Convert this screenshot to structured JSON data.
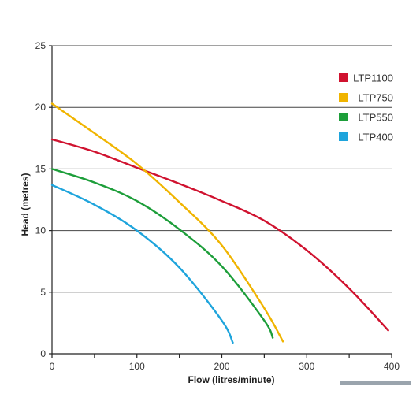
{
  "chart_data": {
    "type": "line",
    "xlabel": "Flow (litres/minute)",
    "ylabel": "Head (metres)",
    "xlim": [
      0,
      400
    ],
    "ylim": [
      0,
      25
    ],
    "xticks": [
      0,
      100,
      200,
      300,
      400
    ],
    "yticks": [
      0,
      5,
      10,
      15,
      20,
      25
    ],
    "grid": "horizontal",
    "legend_position": "top-right",
    "series": [
      {
        "name": "LTP1100",
        "color": "#d0122f",
        "x": [
          0,
          50,
          100,
          150,
          200,
          250,
          300,
          350,
          396
        ],
        "y": [
          17.4,
          16.4,
          15.1,
          13.8,
          12.4,
          10.8,
          8.4,
          5.3,
          1.9
        ]
      },
      {
        "name": "LTP750",
        "color": "#f0b400",
        "x": [
          0,
          50,
          100,
          150,
          200,
          250,
          272
        ],
        "y": [
          20.3,
          17.9,
          15.4,
          12.3,
          8.8,
          3.7,
          1.0
        ]
      },
      {
        "name": "LTP550",
        "color": "#1d9e3a",
        "x": [
          0,
          50,
          100,
          150,
          200,
          250,
          260
        ],
        "y": [
          15.0,
          13.9,
          12.4,
          10.1,
          7.1,
          2.7,
          1.3
        ]
      },
      {
        "name": "LTP400",
        "color": "#1ea4dc",
        "x": [
          0,
          50,
          100,
          150,
          200,
          213
        ],
        "y": [
          13.7,
          12.1,
          10.0,
          7.0,
          2.7,
          0.9
        ]
      }
    ]
  }
}
